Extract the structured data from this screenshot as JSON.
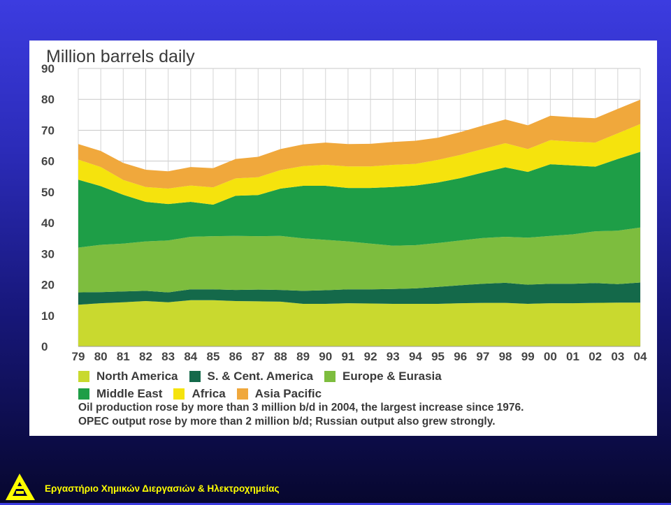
{
  "chart_data": {
    "type": "area",
    "stacked": true,
    "title": "Million barrels daily",
    "x": [
      "79",
      "80",
      "81",
      "82",
      "83",
      "84",
      "85",
      "86",
      "87",
      "88",
      "89",
      "90",
      "91",
      "92",
      "93",
      "94",
      "95",
      "96",
      "97",
      "98",
      "99",
      "00",
      "01",
      "02",
      "03",
      "04"
    ],
    "ylim": [
      0,
      90
    ],
    "yticks": [
      0,
      10,
      20,
      30,
      40,
      50,
      60,
      70,
      80,
      90
    ],
    "grid": true,
    "series": [
      {
        "name": "North America",
        "color": "#c9d92f",
        "values": [
          13.5,
          14.0,
          14.3,
          14.7,
          14.3,
          15.0,
          15.0,
          14.7,
          14.6,
          14.5,
          13.8,
          13.8,
          14.0,
          13.9,
          13.8,
          13.8,
          13.8,
          14.0,
          14.1,
          14.1,
          13.8,
          14.0,
          14.0,
          14.1,
          14.2,
          14.2
        ]
      },
      {
        "name": "S. & Cent. America",
        "color": "#14694a",
        "values": [
          4.0,
          3.6,
          3.5,
          3.3,
          3.2,
          3.5,
          3.5,
          3.6,
          3.8,
          3.8,
          4.2,
          4.4,
          4.5,
          4.6,
          4.8,
          5.0,
          5.5,
          5.8,
          6.2,
          6.5,
          6.2,
          6.3,
          6.3,
          6.4,
          6.0,
          6.5
        ]
      },
      {
        "name": "Europe & Eurasia",
        "color": "#7dbd3e",
        "values": [
          14.5,
          15.3,
          15.5,
          16.0,
          16.8,
          17.0,
          17.2,
          17.5,
          17.3,
          17.5,
          17.0,
          16.3,
          15.5,
          14.8,
          14.0,
          14.0,
          14.2,
          14.5,
          14.8,
          14.9,
          15.2,
          15.5,
          16.0,
          16.8,
          17.3,
          17.8
        ]
      },
      {
        "name": "Middle East",
        "color": "#1e9e47",
        "values": [
          22.0,
          19.0,
          15.8,
          12.8,
          11.8,
          11.3,
          10.2,
          13.0,
          13.3,
          15.3,
          17.0,
          17.5,
          17.3,
          18.0,
          19.0,
          19.3,
          19.6,
          20.2,
          21.2,
          22.5,
          21.3,
          23.2,
          22.3,
          20.9,
          23.2,
          24.5
        ]
      },
      {
        "name": "Africa",
        "color": "#f5e30d",
        "values": [
          6.5,
          6.2,
          4.8,
          4.8,
          5.0,
          5.3,
          5.6,
          5.6,
          5.8,
          6.0,
          6.4,
          6.8,
          7.0,
          7.0,
          7.2,
          7.0,
          7.3,
          7.5,
          7.6,
          7.8,
          7.4,
          7.8,
          7.7,
          7.8,
          8.3,
          9.0
        ]
      },
      {
        "name": "Asia Pacific",
        "color": "#f0a83c",
        "values": [
          5.0,
          5.2,
          5.5,
          5.6,
          5.6,
          6.0,
          6.2,
          6.3,
          6.6,
          6.8,
          7.0,
          7.2,
          7.2,
          7.3,
          7.4,
          7.5,
          7.2,
          7.4,
          7.6,
          7.7,
          7.7,
          7.9,
          7.9,
          7.9,
          7.9,
          7.9
        ]
      }
    ],
    "legend_position": "bottom"
  },
  "notes": [
    "Oil production rose by more than 3 million b/d in 2004, the largest increase since 1976.",
    "OPEC output rose by more than 2 million b/d; Russian output also grew strongly."
  ],
  "footer": {
    "text": "Εργαστήριο Χημικών Διεργασιών & Ηλεκτροχημείας",
    "logo_icon": "lab-logo-icon"
  }
}
